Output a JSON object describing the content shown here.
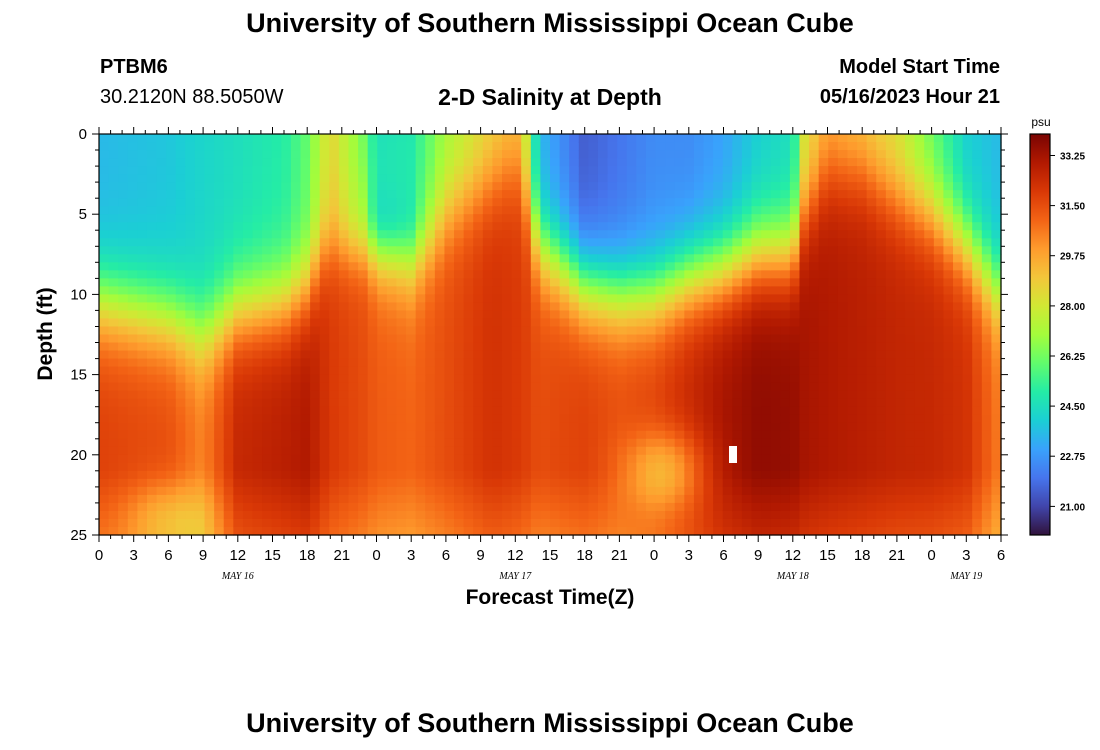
{
  "header": {
    "title": "University of Southern Mississippi Ocean Cube",
    "station_id": "PTBM6",
    "coords": "30.2120N  88.5050W",
    "plot_title": "2-D Salinity at Depth",
    "start_label": "Model Start Time",
    "start_value": "05/16/2023 Hour 21"
  },
  "footer": {
    "title": "University of Southern Mississippi Ocean Cube"
  },
  "colors": {
    "palette": [
      "#30123b",
      "#4145ab",
      "#4675ed",
      "#39a2fc",
      "#1bcfd4",
      "#24eca6",
      "#61fc6c",
      "#a4fc3b",
      "#d1e834",
      "#f3c63a",
      "#fe9b2d",
      "#f36315",
      "#d93806",
      "#b11901",
      "#7a0402"
    ]
  },
  "chart_data": {
    "type": "heatmap",
    "title": "2-D Salinity at Depth",
    "xlabel": "Forecast Time(Z)",
    "ylabel": "Depth (ft)",
    "x_range_hours": [
      0,
      78
    ],
    "y_range_ft": [
      0,
      25
    ],
    "x_ticks": [
      "0",
      "3",
      "6",
      "9",
      "12",
      "15",
      "18",
      "21",
      "0",
      "3",
      "6",
      "9",
      "12",
      "15",
      "18",
      "21",
      "0",
      "3",
      "6",
      "9",
      "12",
      "15",
      "18",
      "21",
      "0",
      "3",
      "6"
    ],
    "y_ticks": [
      "0",
      "5",
      "10",
      "15",
      "20",
      "25"
    ],
    "date_labels": [
      {
        "text": "MAY 16",
        "hour": 12
      },
      {
        "text": "MAY 17",
        "hour": 36
      },
      {
        "text": "MAY 18",
        "hour": 60
      },
      {
        "text": "MAY 19",
        "hour": 75
      }
    ],
    "colorbar": {
      "unit": "psu",
      "min": 20.0,
      "max": 34.0,
      "ticks": [
        "33.25",
        "31.50",
        "29.75",
        "28.00",
        "26.25",
        "24.50",
        "22.75",
        "21.00"
      ]
    },
    "column_profiles": [
      {
        "hour": 0,
        "surface": 23.5,
        "halocline_ft": 10.5,
        "bottom": 31.8
      },
      {
        "hour": 6,
        "surface": 23.8,
        "halocline_ft": 11.5,
        "bottom": 31.5
      },
      {
        "hour": 9,
        "surface": 24.2,
        "halocline_ft": 12.5,
        "bottom": 30.5
      },
      {
        "hour": 12,
        "surface": 24.5,
        "halocline_ft": 11.0,
        "bottom": 32.5
      },
      {
        "hour": 16,
        "surface": 25.0,
        "halocline_ft": 10.5,
        "bottom": 32.8
      },
      {
        "hour": 18,
        "surface": 26.0,
        "halocline_ft": 9.5,
        "bottom": 33.0
      },
      {
        "hour": 20,
        "surface": 28.5,
        "halocline_ft": 6.0,
        "bottom": 32.0
      },
      {
        "hour": 23,
        "surface": 26.0,
        "halocline_ft": 5.5,
        "bottom": 31.5
      },
      {
        "hour": 24,
        "surface": 24.5,
        "halocline_ft": 7.0,
        "bottom": 31.2
      },
      {
        "hour": 27,
        "surface": 24.8,
        "halocline_ft": 8.0,
        "bottom": 31.0
      },
      {
        "hour": 30,
        "surface": 27.0,
        "halocline_ft": 5.0,
        "bottom": 31.5
      },
      {
        "hour": 34,
        "surface": 28.5,
        "halocline_ft": 3.0,
        "bottom": 32.2
      },
      {
        "hour": 36,
        "surface": 29.0,
        "halocline_ft": 2.0,
        "bottom": 32.0
      },
      {
        "hour": 37,
        "surface": 27.5,
        "halocline_ft": 4.0,
        "bottom": 31.8
      },
      {
        "hour": 38,
        "surface": 23.5,
        "halocline_ft": 7.0,
        "bottom": 31.5
      },
      {
        "hour": 42,
        "surface": 21.5,
        "halocline_ft": 9.5,
        "bottom": 31.8
      },
      {
        "hour": 45,
        "surface": 22.0,
        "halocline_ft": 10.0,
        "bottom": 31.5
      },
      {
        "hour": 48,
        "surface": 22.5,
        "halocline_ft": 10.0,
        "bottom": 31.8
      },
      {
        "hour": 51,
        "surface": 22.5,
        "halocline_ft": 9.0,
        "bottom": 32.5
      },
      {
        "hour": 54,
        "surface": 23.0,
        "halocline_ft": 8.5,
        "bottom": 33.2
      },
      {
        "hour": 57,
        "surface": 24.0,
        "halocline_ft": 7.5,
        "bottom": 33.6
      },
      {
        "hour": 60,
        "surface": 24.5,
        "halocline_ft": 7.5,
        "bottom": 33.5
      },
      {
        "hour": 61,
        "surface": 28.0,
        "halocline_ft": 5.0,
        "bottom": 33.2
      },
      {
        "hour": 63,
        "surface": 29.5,
        "halocline_ft": 2.5,
        "bottom": 33.0
      },
      {
        "hour": 66,
        "surface": 28.8,
        "halocline_ft": 2.5,
        "bottom": 32.8
      },
      {
        "hour": 69,
        "surface": 28.0,
        "halocline_ft": 4.0,
        "bottom": 32.6
      },
      {
        "hour": 72,
        "surface": 26.0,
        "halocline_ft": 5.0,
        "bottom": 32.5
      },
      {
        "hour": 75,
        "surface": 24.0,
        "halocline_ft": 7.0,
        "bottom": 32.2
      },
      {
        "hour": 78,
        "surface": 23.5,
        "halocline_ft": 10.0,
        "bottom": 30.5
      }
    ],
    "pockets": [
      {
        "hour": 49,
        "depth_ft": 21,
        "delta": -2.5
      },
      {
        "hour": 24,
        "depth_ft": 6,
        "delta": -1.5
      },
      {
        "hour": 6,
        "depth_ft": 24,
        "delta": -1.5
      }
    ],
    "missing_cell": {
      "hour": 55,
      "depth_ft": 20
    }
  }
}
